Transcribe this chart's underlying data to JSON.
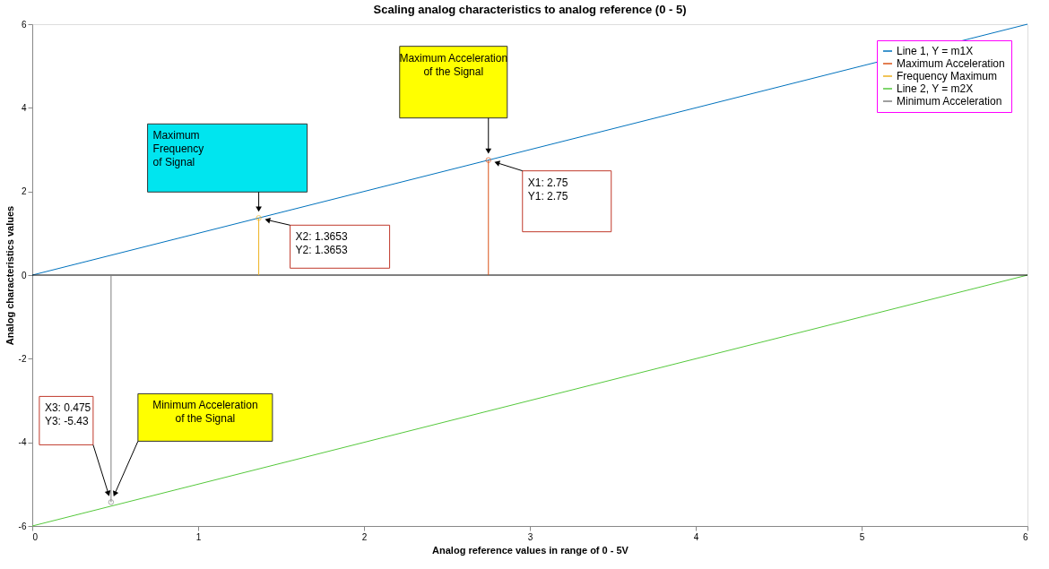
{
  "chart_data": {
    "type": "line",
    "title": "Scaling analog characteristics to analog reference (0 - 5)",
    "xlabel": "Analog reference values in range of 0 - 5V",
    "ylabel": "Analog characteristics values",
    "xlim": [
      0,
      6
    ],
    "xticks": [
      0,
      1,
      2,
      3,
      4,
      5,
      6
    ],
    "ylim": [
      -6,
      6
    ],
    "yticks": [
      -6,
      -4,
      -2,
      0,
      2,
      4,
      6
    ],
    "grid": false,
    "legend": "top right",
    "series": [
      {
        "name": "Line 1, Y = m1X",
        "color": "#0072bd",
        "x": [
          0,
          6
        ],
        "values": [
          0,
          6
        ]
      },
      {
        "name": "Maximum Acceleration",
        "type": "lollipop",
        "color": "#d95319",
        "x": [
          2.75
        ],
        "values": [
          2.75
        ]
      },
      {
        "name": "Frequency Maximum",
        "type": "lollipop",
        "color": "#edb120",
        "x": [
          1.3653
        ],
        "values": [
          1.3653
        ]
      },
      {
        "name": "Line 2, Y = m2X",
        "color": "#55c83c",
        "x": [
          0,
          6
        ],
        "values": [
          -6,
          0
        ]
      },
      {
        "name": "Minimum Acceleration",
        "type": "lollipop",
        "color": "#7f7f7f",
        "x": [
          0.475
        ],
        "values": [
          -5.43
        ]
      }
    ],
    "ref_lines": [
      {
        "axis": "y",
        "value": 0,
        "color": "#000000"
      }
    ],
    "annotations": [
      "Maximum Acceleration\nof the Signal",
      "Maximum\nFrequency\nof Signal",
      "X1: 2.75\nY1: 2.75",
      "X2: 1.3653\nY2: 1.3653",
      "X3: 0.475\nY3: -5.43",
      "Minimum Acceleration\nof the Signal"
    ]
  }
}
